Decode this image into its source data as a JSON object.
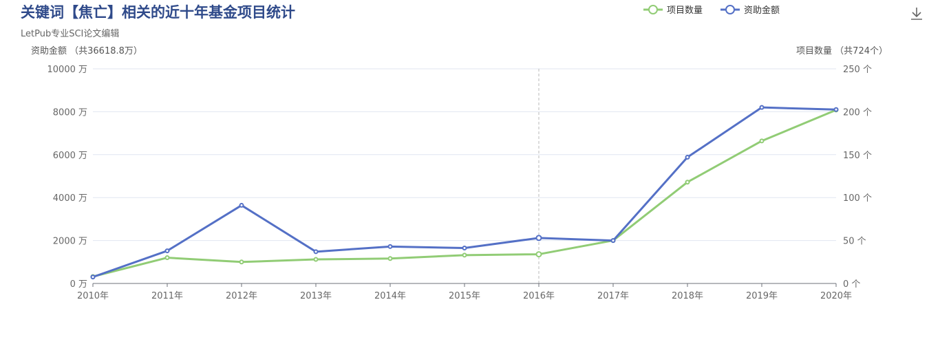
{
  "title": "关键词【焦亡】相关的近十年基金项目统计",
  "subtitle": "LetPub专业SCI论文编辑",
  "toolbar": {
    "download_icon": "download-icon"
  },
  "chart_data": {
    "type": "line",
    "categories": [
      "2010年",
      "2011年",
      "2012年",
      "2013年",
      "2014年",
      "2015年",
      "2016年",
      "2017年",
      "2018年",
      "2019年",
      "2020年"
    ],
    "series": [
      {
        "name": "项目数量",
        "axis": "right",
        "color": "#91cc75",
        "values": [
          8,
          30,
          25,
          28,
          29,
          33,
          34,
          50,
          118,
          166,
          202
        ]
      },
      {
        "name": "资助金额",
        "axis": "left",
        "color": "#5470c6",
        "values": [
          300,
          1520,
          3640,
          1480,
          1720,
          1650,
          2120,
          2000,
          5880,
          8200,
          8100
        ]
      }
    ],
    "y_left": {
      "label": "资助金额 （共36618.8万）",
      "ylim": [
        0,
        10000
      ],
      "ticks": [
        "0 万",
        "2000 万",
        "4000 万",
        "6000 万",
        "8000 万",
        "10000 万"
      ]
    },
    "y_right": {
      "label": "项目数量 （共724个）",
      "ylim": [
        0,
        250
      ],
      "ticks": [
        "0 个",
        "50 个",
        "100 个",
        "150 个",
        "200 个",
        "250 个"
      ]
    },
    "highlight_category": "2016年",
    "grid": true,
    "legend_position": "top-right"
  }
}
